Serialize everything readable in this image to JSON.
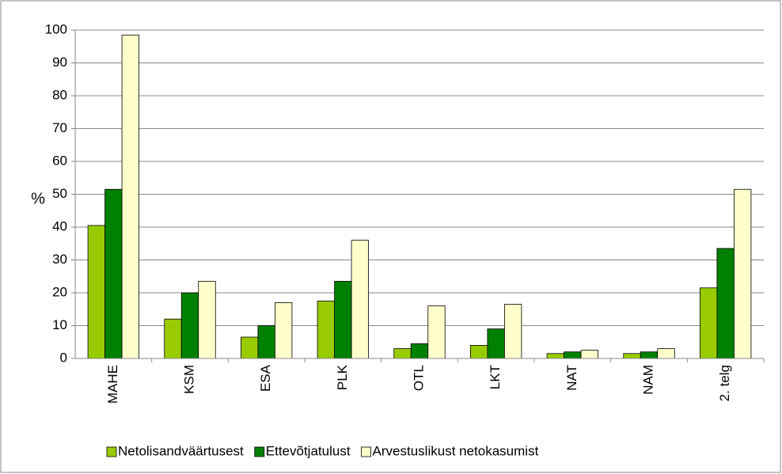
{
  "chart_data": {
    "type": "bar",
    "y_label": "%",
    "categories": [
      "MAHE",
      "KSM",
      "ESA",
      "PLK",
      "OTL",
      "LKT",
      "NAT",
      "NAM",
      "2. telg"
    ],
    "series": [
      {
        "name": "Netolisandväärtusest",
        "color": "#99cc00",
        "values": [
          40.5,
          12,
          6.5,
          17.5,
          3,
          4,
          1.5,
          1.5,
          21.5
        ]
      },
      {
        "name": "Ettevõtjatulust",
        "color": "#008000",
        "values": [
          51.5,
          20,
          10,
          23.5,
          4.5,
          9,
          2,
          2,
          33.5
        ]
      },
      {
        "name": "Arvestuslikust netokasumist",
        "color": "#ffffcc",
        "values": [
          98.5,
          23.5,
          17,
          36,
          16,
          16.5,
          2.5,
          3,
          51.5
        ]
      }
    ],
    "ylim": [
      0,
      100
    ],
    "yticks": [
      0,
      10,
      20,
      30,
      40,
      50,
      60,
      70,
      80,
      90,
      100
    ],
    "grid": true,
    "legend": "bottom"
  }
}
